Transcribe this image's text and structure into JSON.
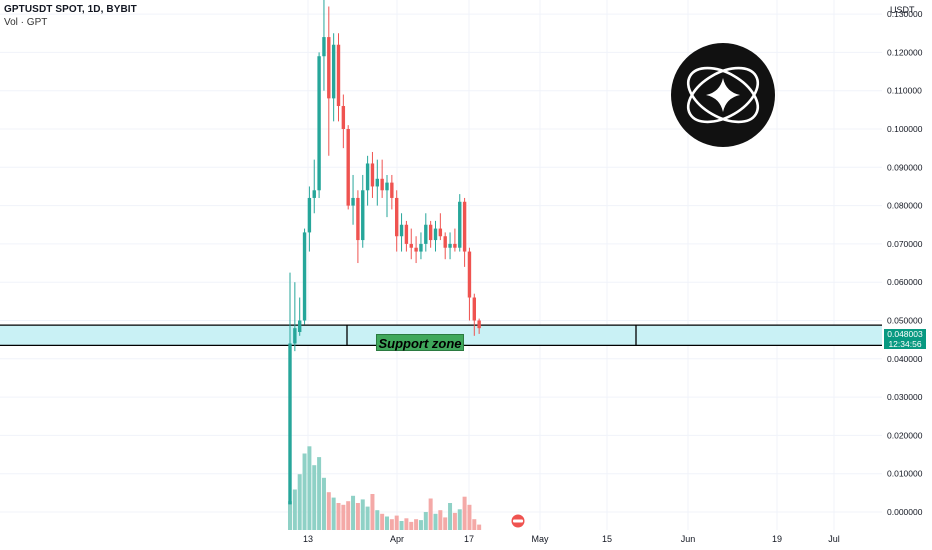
{
  "header": {
    "symbol": "GPTUSDT SPOT, 1D, BYBIT",
    "vol_label": "Vol · GPT"
  },
  "price_axis": {
    "unit": "USDT",
    "ticks": [
      "0.130000",
      "0.120000",
      "0.110000",
      "0.100000",
      "0.090000",
      "0.080000",
      "0.070000",
      "0.060000",
      "0.050000",
      "0.040000",
      "0.030000",
      "0.020000",
      "0.010000",
      "0.000000"
    ]
  },
  "time_axis": {
    "ticks": [
      "13",
      "Apr",
      "17",
      "May",
      "15",
      "Jun",
      "19",
      "Jul"
    ]
  },
  "last_price": {
    "price": "0.048003",
    "countdown": "12:34:56"
  },
  "annotation": {
    "label": "Support zone",
    "zone_low": 0.0435,
    "zone_high": 0.0488
  },
  "colors": {
    "up": "#26a69a",
    "down": "#ef5350",
    "vol_up": "#8fd1c6",
    "vol_down": "#f4a9a7",
    "zone": "#c9f1f5",
    "badge": "#089981"
  },
  "logo_icon": "sparkle-orbit-logo-icon",
  "chart_data": {
    "type": "candlestick",
    "title": "GPTUSDT SPOT, 1D, BYBIT",
    "ylabel": "USDT",
    "ylim": [
      0,
      0.13
    ],
    "grid": true,
    "candles": [
      {
        "o": 0.002,
        "h": 0.0625,
        "l": 0.002,
        "c": 0.044
      },
      {
        "o": 0.044,
        "h": 0.06,
        "l": 0.042,
        "c": 0.048
      },
      {
        "o": 0.047,
        "h": 0.056,
        "l": 0.046,
        "c": 0.05
      },
      {
        "o": 0.05,
        "h": 0.074,
        "l": 0.049,
        "c": 0.073
      },
      {
        "o": 0.073,
        "h": 0.085,
        "l": 0.068,
        "c": 0.082
      },
      {
        "o": 0.082,
        "h": 0.092,
        "l": 0.078,
        "c": 0.084
      },
      {
        "o": 0.084,
        "h": 0.12,
        "l": 0.082,
        "c": 0.119
      },
      {
        "o": 0.119,
        "h": 0.138,
        "l": 0.11,
        "c": 0.124
      },
      {
        "o": 0.124,
        "h": 0.132,
        "l": 0.093,
        "c": 0.108
      },
      {
        "o": 0.108,
        "h": 0.125,
        "l": 0.102,
        "c": 0.122
      },
      {
        "o": 0.122,
        "h": 0.125,
        "l": 0.102,
        "c": 0.106
      },
      {
        "o": 0.106,
        "h": 0.109,
        "l": 0.095,
        "c": 0.1
      },
      {
        "o": 0.1,
        "h": 0.101,
        "l": 0.079,
        "c": 0.08
      },
      {
        "o": 0.08,
        "h": 0.088,
        "l": 0.075,
        "c": 0.082
      },
      {
        "o": 0.082,
        "h": 0.084,
        "l": 0.065,
        "c": 0.071
      },
      {
        "o": 0.071,
        "h": 0.088,
        "l": 0.069,
        "c": 0.084
      },
      {
        "o": 0.084,
        "h": 0.093,
        "l": 0.08,
        "c": 0.091
      },
      {
        "o": 0.091,
        "h": 0.094,
        "l": 0.082,
        "c": 0.085
      },
      {
        "o": 0.085,
        "h": 0.092,
        "l": 0.08,
        "c": 0.087
      },
      {
        "o": 0.087,
        "h": 0.092,
        "l": 0.082,
        "c": 0.084
      },
      {
        "o": 0.084,
        "h": 0.088,
        "l": 0.077,
        "c": 0.086
      },
      {
        "o": 0.086,
        "h": 0.088,
        "l": 0.079,
        "c": 0.082
      },
      {
        "o": 0.082,
        "h": 0.084,
        "l": 0.068,
        "c": 0.072
      },
      {
        "o": 0.072,
        "h": 0.078,
        "l": 0.068,
        "c": 0.075
      },
      {
        "o": 0.075,
        "h": 0.076,
        "l": 0.068,
        "c": 0.07
      },
      {
        "o": 0.07,
        "h": 0.074,
        "l": 0.066,
        "c": 0.069
      },
      {
        "o": 0.069,
        "h": 0.072,
        "l": 0.065,
        "c": 0.068
      },
      {
        "o": 0.068,
        "h": 0.073,
        "l": 0.066,
        "c": 0.07
      },
      {
        "o": 0.07,
        "h": 0.078,
        "l": 0.068,
        "c": 0.075
      },
      {
        "o": 0.075,
        "h": 0.076,
        "l": 0.069,
        "c": 0.071
      },
      {
        "o": 0.071,
        "h": 0.076,
        "l": 0.068,
        "c": 0.074
      },
      {
        "o": 0.074,
        "h": 0.078,
        "l": 0.071,
        "c": 0.072
      },
      {
        "o": 0.072,
        "h": 0.073,
        "l": 0.066,
        "c": 0.069
      },
      {
        "o": 0.069,
        "h": 0.073,
        "l": 0.066,
        "c": 0.07
      },
      {
        "o": 0.07,
        "h": 0.074,
        "l": 0.068,
        "c": 0.069
      },
      {
        "o": 0.069,
        "h": 0.083,
        "l": 0.068,
        "c": 0.081
      },
      {
        "o": 0.081,
        "h": 0.082,
        "l": 0.064,
        "c": 0.068
      },
      {
        "o": 0.068,
        "h": 0.069,
        "l": 0.05,
        "c": 0.056
      },
      {
        "o": 0.056,
        "h": 0.057,
        "l": 0.046,
        "c": 0.05
      },
      {
        "o": 0.05,
        "h": 0.0505,
        "l": 0.0465,
        "c": 0.048
      }
    ],
    "volume": [
      0.32,
      0.45,
      0.62,
      0.85,
      0.93,
      0.72,
      0.81,
      0.58,
      0.42,
      0.36,
      0.3,
      0.28,
      0.32,
      0.38,
      0.3,
      0.34,
      0.26,
      0.4,
      0.22,
      0.18,
      0.15,
      0.12,
      0.16,
      0.1,
      0.13,
      0.09,
      0.12,
      0.11,
      0.2,
      0.35,
      0.18,
      0.22,
      0.14,
      0.3,
      0.19,
      0.23,
      0.37,
      0.28,
      0.12,
      0.06
    ]
  }
}
